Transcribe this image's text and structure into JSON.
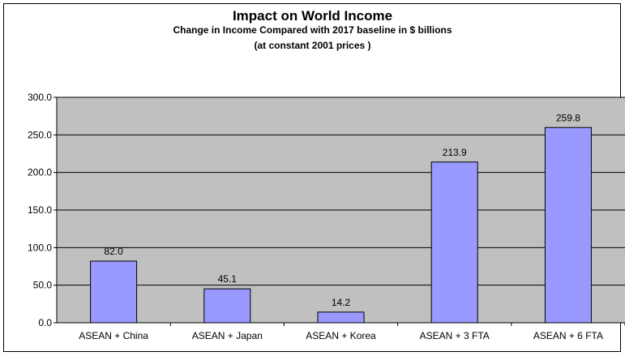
{
  "chart_data": {
    "type": "bar",
    "title": "Impact on World Income",
    "subtitle": "Change in Income Compared with 2017 baseline in $ billions",
    "subtitle2": "(at constant 2001 prices )",
    "categories": [
      "ASEAN + China",
      "ASEAN + Japan",
      "ASEAN + Korea",
      "ASEAN + 3 FTA",
      "ASEAN + 6 FTA"
    ],
    "values": [
      82.0,
      45.1,
      14.2,
      213.9,
      259.8
    ],
    "data_labels": [
      "82.0",
      "45.1",
      "14.2",
      "213.9",
      "259.8"
    ],
    "y_ticks": [
      "0.0",
      "50.0",
      "100.0",
      "150.0",
      "200.0",
      "250.0",
      "300.0"
    ],
    "xlabel": "",
    "ylabel": "",
    "ylim": [
      0,
      300
    ],
    "grid": true,
    "legend": "none",
    "colors": {
      "bar_fill": "#9999ff",
      "plot_bg": "#c0c0c0",
      "grid": "#000000"
    }
  }
}
